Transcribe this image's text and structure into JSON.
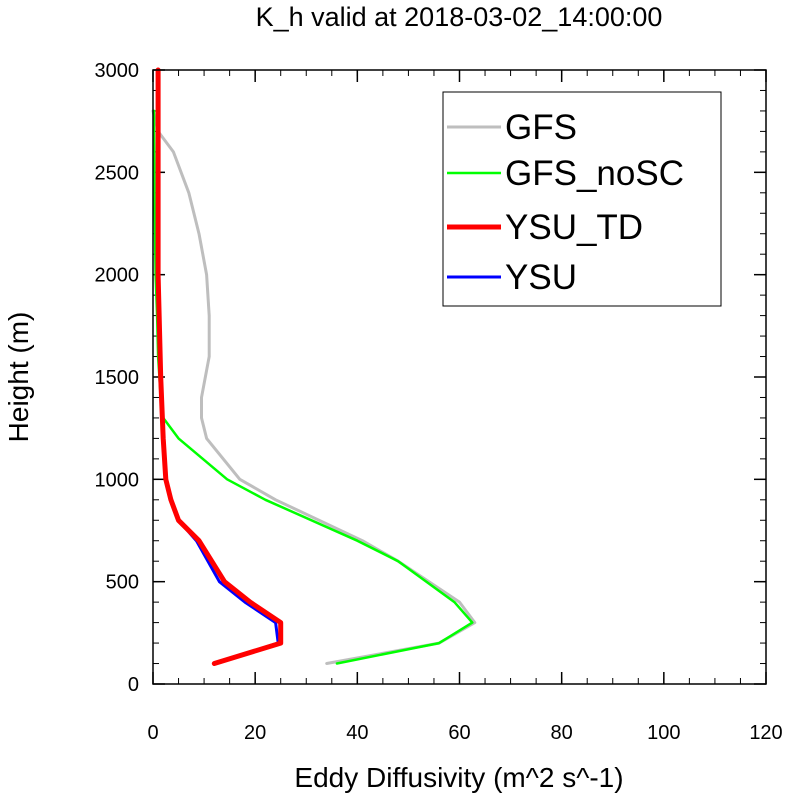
{
  "chart_data": {
    "type": "line",
    "title": "K_h valid at 2018-03-02_14:00:00",
    "xlabel": "Eddy Diffusivity (m^2 s^-1)",
    "ylabel": "Height (m)",
    "xlim": [
      0,
      120
    ],
    "ylim": [
      0,
      3000
    ],
    "xticks": [
      0,
      20,
      40,
      60,
      80,
      100,
      120
    ],
    "yticks": [
      0,
      500,
      1000,
      1500,
      2000,
      2500,
      3000
    ],
    "grid": false,
    "legend": "top-right",
    "series": [
      {
        "name": "GFS",
        "color": "#bebebe",
        "x": [
          34,
          56,
          63,
          60,
          48,
          41,
          24,
          17,
          10.5,
          9.5,
          9.5,
          11,
          11,
          10.5,
          9,
          7,
          4,
          1,
          0
        ],
        "y": [
          100,
          200,
          300,
          400,
          600,
          700,
          900,
          1000,
          1200,
          1300,
          1400,
          1600,
          1800,
          2000,
          2200,
          2400,
          2600,
          2700,
          2800
        ]
      },
      {
        "name": "GFS_noSC",
        "color": "#00ff00",
        "x": [
          36,
          56,
          62.5,
          59,
          48,
          40,
          22,
          14.5,
          5,
          2,
          1.5,
          1,
          0.8,
          0.5,
          0.3,
          0.2,
          0.2
        ],
        "y": [
          100,
          200,
          300,
          400,
          600,
          700,
          900,
          1000,
          1200,
          1300,
          1400,
          1600,
          1800,
          2000,
          2400,
          2700,
          2800
        ]
      },
      {
        "name": "YSU_TD",
        "color": "#ff0000",
        "x": [
          12,
          25,
          25,
          19,
          14,
          9,
          5,
          3.5,
          2.5,
          2,
          1.5,
          1,
          1,
          1,
          1
        ],
        "y": [
          100,
          200,
          300,
          400,
          500,
          700,
          800,
          900,
          1000,
          1200,
          1500,
          2000,
          2500,
          2900,
          3000
        ]
      },
      {
        "name": "YSU",
        "color": "#0000ff",
        "x": [
          12,
          24.5,
          24,
          18,
          13,
          8.5,
          5,
          3.5,
          2.5,
          2,
          1.5,
          1,
          1,
          1,
          1
        ],
        "y": [
          100,
          200,
          300,
          400,
          500,
          700,
          800,
          900,
          1000,
          1200,
          1500,
          2000,
          2500,
          2900,
          3000
        ]
      }
    ]
  }
}
